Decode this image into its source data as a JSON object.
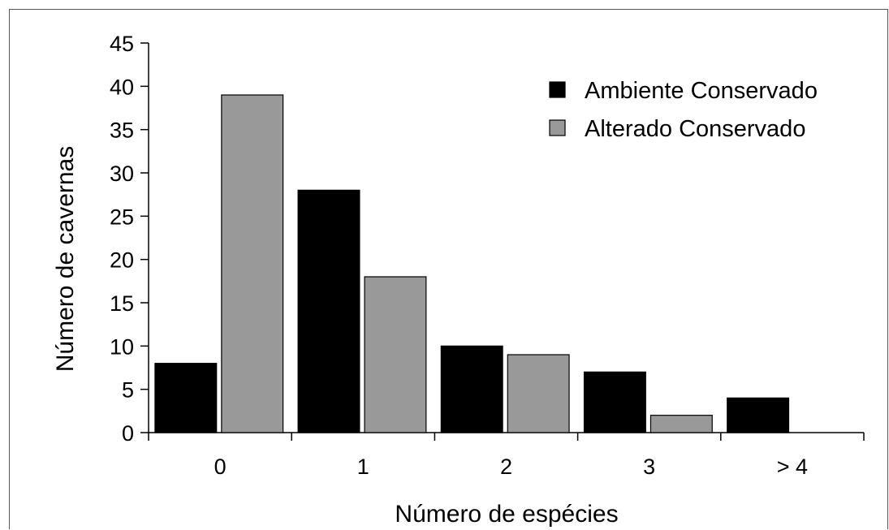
{
  "chart_data": {
    "type": "bar",
    "categories": [
      "0",
      "1",
      "2",
      "3",
      "> 4"
    ],
    "series": [
      {
        "name": "Ambiente Conservado",
        "values": [
          8,
          28,
          10,
          7,
          4
        ],
        "color": "#000000"
      },
      {
        "name": "Alterado Conservado",
        "values": [
          39,
          18,
          9,
          2,
          0
        ],
        "color": "#999999"
      }
    ],
    "xlabel": "Número de espécies",
    "ylabel": "Número de cavernas",
    "ylim": [
      0,
      45
    ],
    "yticks": [
      "0",
      "5",
      "10",
      "15",
      "20",
      "25",
      "30",
      "35",
      "40",
      "45"
    ],
    "grid": false,
    "legend_position": "top-right"
  }
}
